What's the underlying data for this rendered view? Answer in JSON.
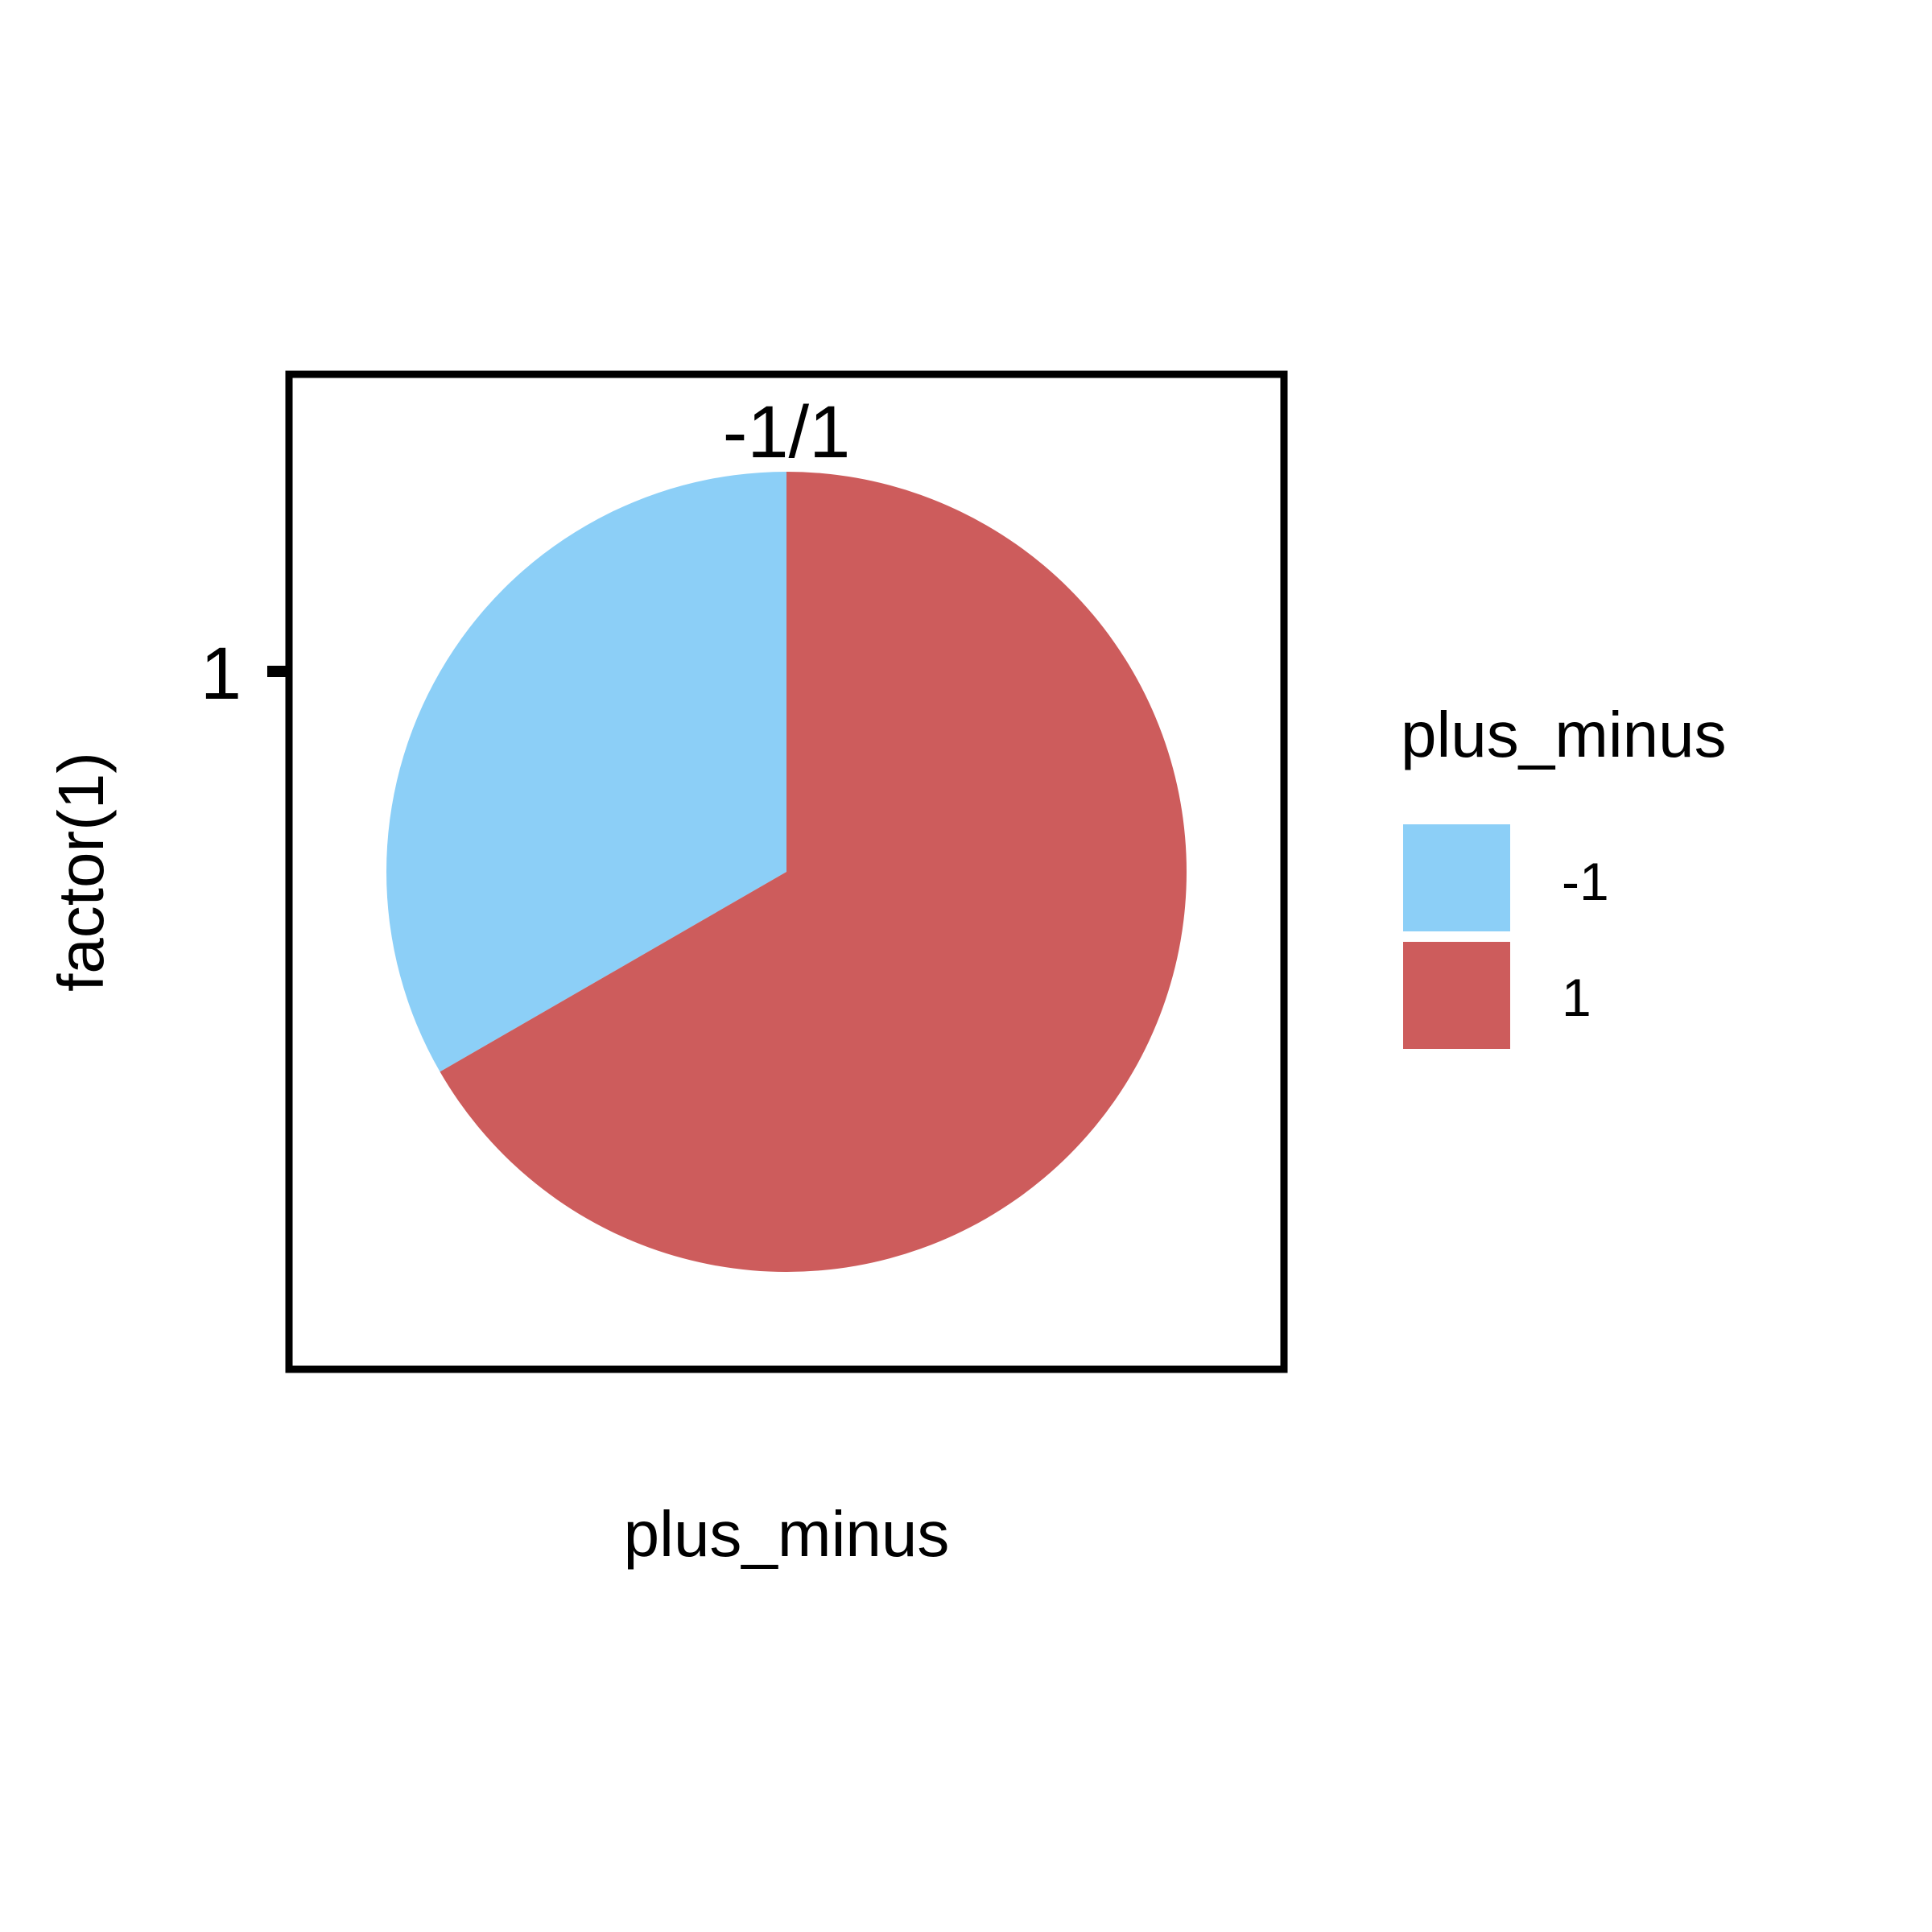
{
  "chart_data": {
    "type": "pie",
    "panel_label": "-1/1",
    "xlabel": "plus_minus",
    "ylabel": "factor(1)",
    "y_ticks": [
      "1"
    ],
    "slices": [
      {
        "label": "-1",
        "value": 0.3333,
        "color": "#8ccff7"
      },
      {
        "label": "1",
        "value": 0.6667,
        "color": "#cd5c5c"
      }
    ],
    "legend": {
      "title": "plus_minus",
      "position": "right",
      "entries": [
        {
          "label": "-1",
          "color": "#8ccff7"
        },
        {
          "label": "1",
          "color": "#cd5c5c"
        }
      ]
    }
  }
}
